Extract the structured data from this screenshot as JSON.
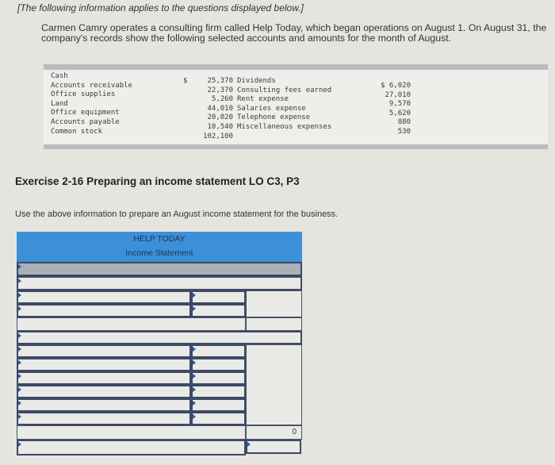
{
  "intro": "[The following information applies to the questions displayed below.]",
  "paragraph": "Carmen Camry operates a consulting firm called Help Today, which began operations on August 1. On August 31, the company's records show the following selected accounts and amounts for the month of August.",
  "accounts_left": [
    {
      "name": "Cash",
      "amount": "25,370"
    },
    {
      "name": "Accounts receivable",
      "amount": "22,370"
    },
    {
      "name": "Office supplies",
      "amount": "5,260"
    },
    {
      "name": "Land",
      "amount": "44,010"
    },
    {
      "name": "Office equipment",
      "amount": "20,020"
    },
    {
      "name": "Accounts payable",
      "amount": "10,540"
    },
    {
      "name": "Common stock",
      "amount": "102,100"
    }
  ],
  "currency": "$",
  "accounts_right": [
    {
      "name": "Dividends",
      "amount": "$ 6,020"
    },
    {
      "name": "Consulting fees earned",
      "amount": "27,010"
    },
    {
      "name": "Rent expense",
      "amount": "9,570"
    },
    {
      "name": "Salaries expense",
      "amount": "5,620"
    },
    {
      "name": "Telephone expense",
      "amount": "880"
    },
    {
      "name": "Miscellaneous expenses",
      "amount": "530"
    }
  ],
  "exercise_title": "Exercise 2-16 Preparing an income statement LO C3, P3",
  "instruction": "Use the above information to prepare an August income statement for the business.",
  "statement": {
    "company": "HELP TODAY",
    "title": "Income Statement",
    "total_value": "0"
  },
  "colors": {
    "header": "#3d8fd8",
    "accent_row": "#aab0b6"
  }
}
